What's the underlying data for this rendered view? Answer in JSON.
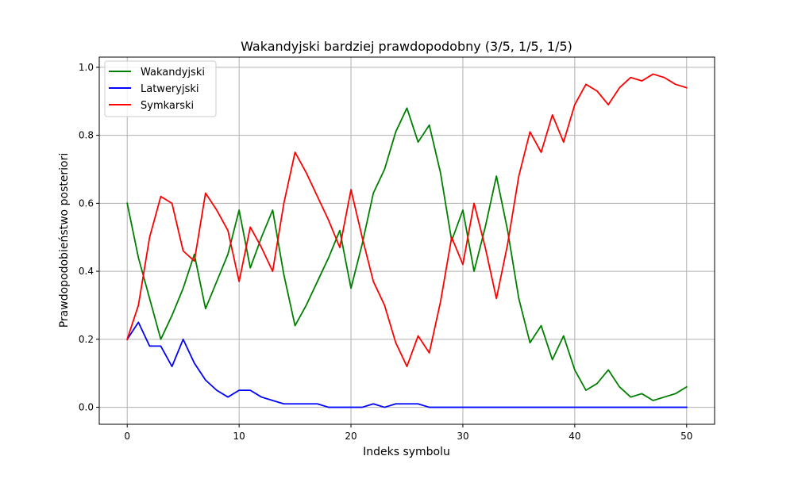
{
  "chart_data": {
    "type": "line",
    "title": "Wakandyjski bardziej prawdopodobny (3/5, 1/5, 1/5)",
    "xlabel": "Indeks symbolu",
    "ylabel": "Prawdopodobieństwo posteriori",
    "xlim": [
      -2.5,
      52.5
    ],
    "ylim": [
      -0.05,
      1.03
    ],
    "xticks": [
      0,
      10,
      20,
      30,
      40,
      50
    ],
    "xtick_labels": [
      "0",
      "10",
      "20",
      "30",
      "40",
      "50"
    ],
    "yticks": [
      0.0,
      0.2,
      0.4,
      0.6,
      0.8,
      1.0
    ],
    "ytick_labels": [
      "0.0",
      "0.2",
      "0.4",
      "0.6",
      "0.8",
      "1.0"
    ],
    "grid": true,
    "legend_position": "top-left",
    "x": [
      0,
      1,
      2,
      3,
      4,
      5,
      6,
      7,
      8,
      9,
      10,
      11,
      12,
      13,
      14,
      15,
      16,
      17,
      18,
      19,
      20,
      21,
      22,
      23,
      24,
      25,
      26,
      27,
      28,
      29,
      30,
      31,
      32,
      33,
      34,
      35,
      36,
      37,
      38,
      39,
      40,
      41,
      42,
      43,
      44,
      45,
      46,
      47,
      48,
      49,
      50
    ],
    "series": [
      {
        "name": "Wakandyjski",
        "color": "#008000",
        "values": [
          0.6,
          0.44,
          0.32,
          0.2,
          0.27,
          0.35,
          0.45,
          0.29,
          0.37,
          0.45,
          0.58,
          0.41,
          0.5,
          0.58,
          0.39,
          0.24,
          0.3,
          0.37,
          0.44,
          0.52,
          0.35,
          0.48,
          0.63,
          0.7,
          0.81,
          0.88,
          0.78,
          0.83,
          0.69,
          0.49,
          0.58,
          0.4,
          0.53,
          0.68,
          0.52,
          0.32,
          0.19,
          0.24,
          0.14,
          0.21,
          0.11,
          0.05,
          0.07,
          0.11,
          0.06,
          0.03,
          0.04,
          0.02,
          0.03,
          0.04,
          0.06
        ]
      },
      {
        "name": "Latweryjski",
        "color": "#0000ff",
        "values": [
          0.2,
          0.25,
          0.18,
          0.18,
          0.12,
          0.2,
          0.13,
          0.08,
          0.05,
          0.03,
          0.05,
          0.05,
          0.03,
          0.02,
          0.01,
          0.01,
          0.01,
          0.01,
          0.0,
          0.0,
          0.0,
          0.0,
          0.01,
          0.0,
          0.01,
          0.01,
          0.01,
          0.0,
          0.0,
          0.0,
          0.0,
          0.0,
          0.0,
          0.0,
          0.0,
          0.0,
          0.0,
          0.0,
          0.0,
          0.0,
          0.0,
          0.0,
          0.0,
          0.0,
          0.0,
          0.0,
          0.0,
          0.0,
          0.0,
          0.0,
          0.0
        ]
      },
      {
        "name": "Symkarski",
        "color": "#ff0000",
        "values": [
          0.2,
          0.3,
          0.5,
          0.62,
          0.6,
          0.46,
          0.43,
          0.63,
          0.58,
          0.52,
          0.37,
          0.53,
          0.47,
          0.4,
          0.6,
          0.75,
          0.69,
          0.62,
          0.55,
          0.47,
          0.64,
          0.5,
          0.37,
          0.3,
          0.19,
          0.12,
          0.21,
          0.16,
          0.31,
          0.5,
          0.42,
          0.6,
          0.47,
          0.32,
          0.48,
          0.68,
          0.81,
          0.75,
          0.86,
          0.78,
          0.89,
          0.95,
          0.93,
          0.89,
          0.94,
          0.97,
          0.96,
          0.98,
          0.97,
          0.95,
          0.94
        ]
      }
    ]
  }
}
